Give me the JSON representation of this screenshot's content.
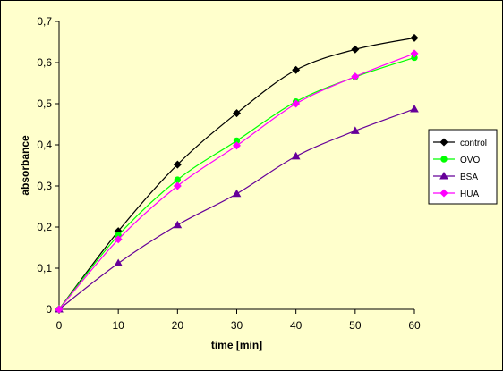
{
  "chart_data": {
    "type": "line",
    "xlabel": "time [min]",
    "ylabel": "absorbance",
    "x": [
      0,
      10,
      20,
      30,
      40,
      50,
      60
    ],
    "xlim": [
      0,
      60
    ],
    "ylim": [
      0,
      0.7
    ],
    "x_ticks": [
      "0",
      "10",
      "20",
      "30",
      "40",
      "50",
      "60"
    ],
    "y_ticks": [
      "0",
      "0,1",
      "0,2",
      "0,3",
      "0,4",
      "0,5",
      "0,6",
      "0,7"
    ],
    "y_tick_values": [
      0,
      0.1,
      0.2,
      0.3,
      0.4,
      0.5,
      0.6,
      0.7
    ],
    "grid": false,
    "legend_position": "right",
    "background_color": "#FFFFCC",
    "series": [
      {
        "name": "control",
        "color": "#000000",
        "marker": "diamond",
        "values": [
          0,
          0.19,
          0.352,
          0.477,
          0.582,
          0.632,
          0.66
        ]
      },
      {
        "name": "OVO",
        "color": "#00FF00",
        "marker": "circle",
        "values": [
          0,
          0.18,
          0.315,
          0.41,
          0.505,
          0.565,
          0.612
        ]
      },
      {
        "name": "BSA",
        "color": "#660099",
        "marker": "triangle",
        "values": [
          0,
          0.112,
          0.205,
          0.281,
          0.372,
          0.434,
          0.487
        ]
      },
      {
        "name": "HUA",
        "color": "#FF00FF",
        "marker": "diamond",
        "values": [
          0,
          0.17,
          0.3,
          0.398,
          0.5,
          0.566,
          0.622
        ]
      }
    ]
  }
}
